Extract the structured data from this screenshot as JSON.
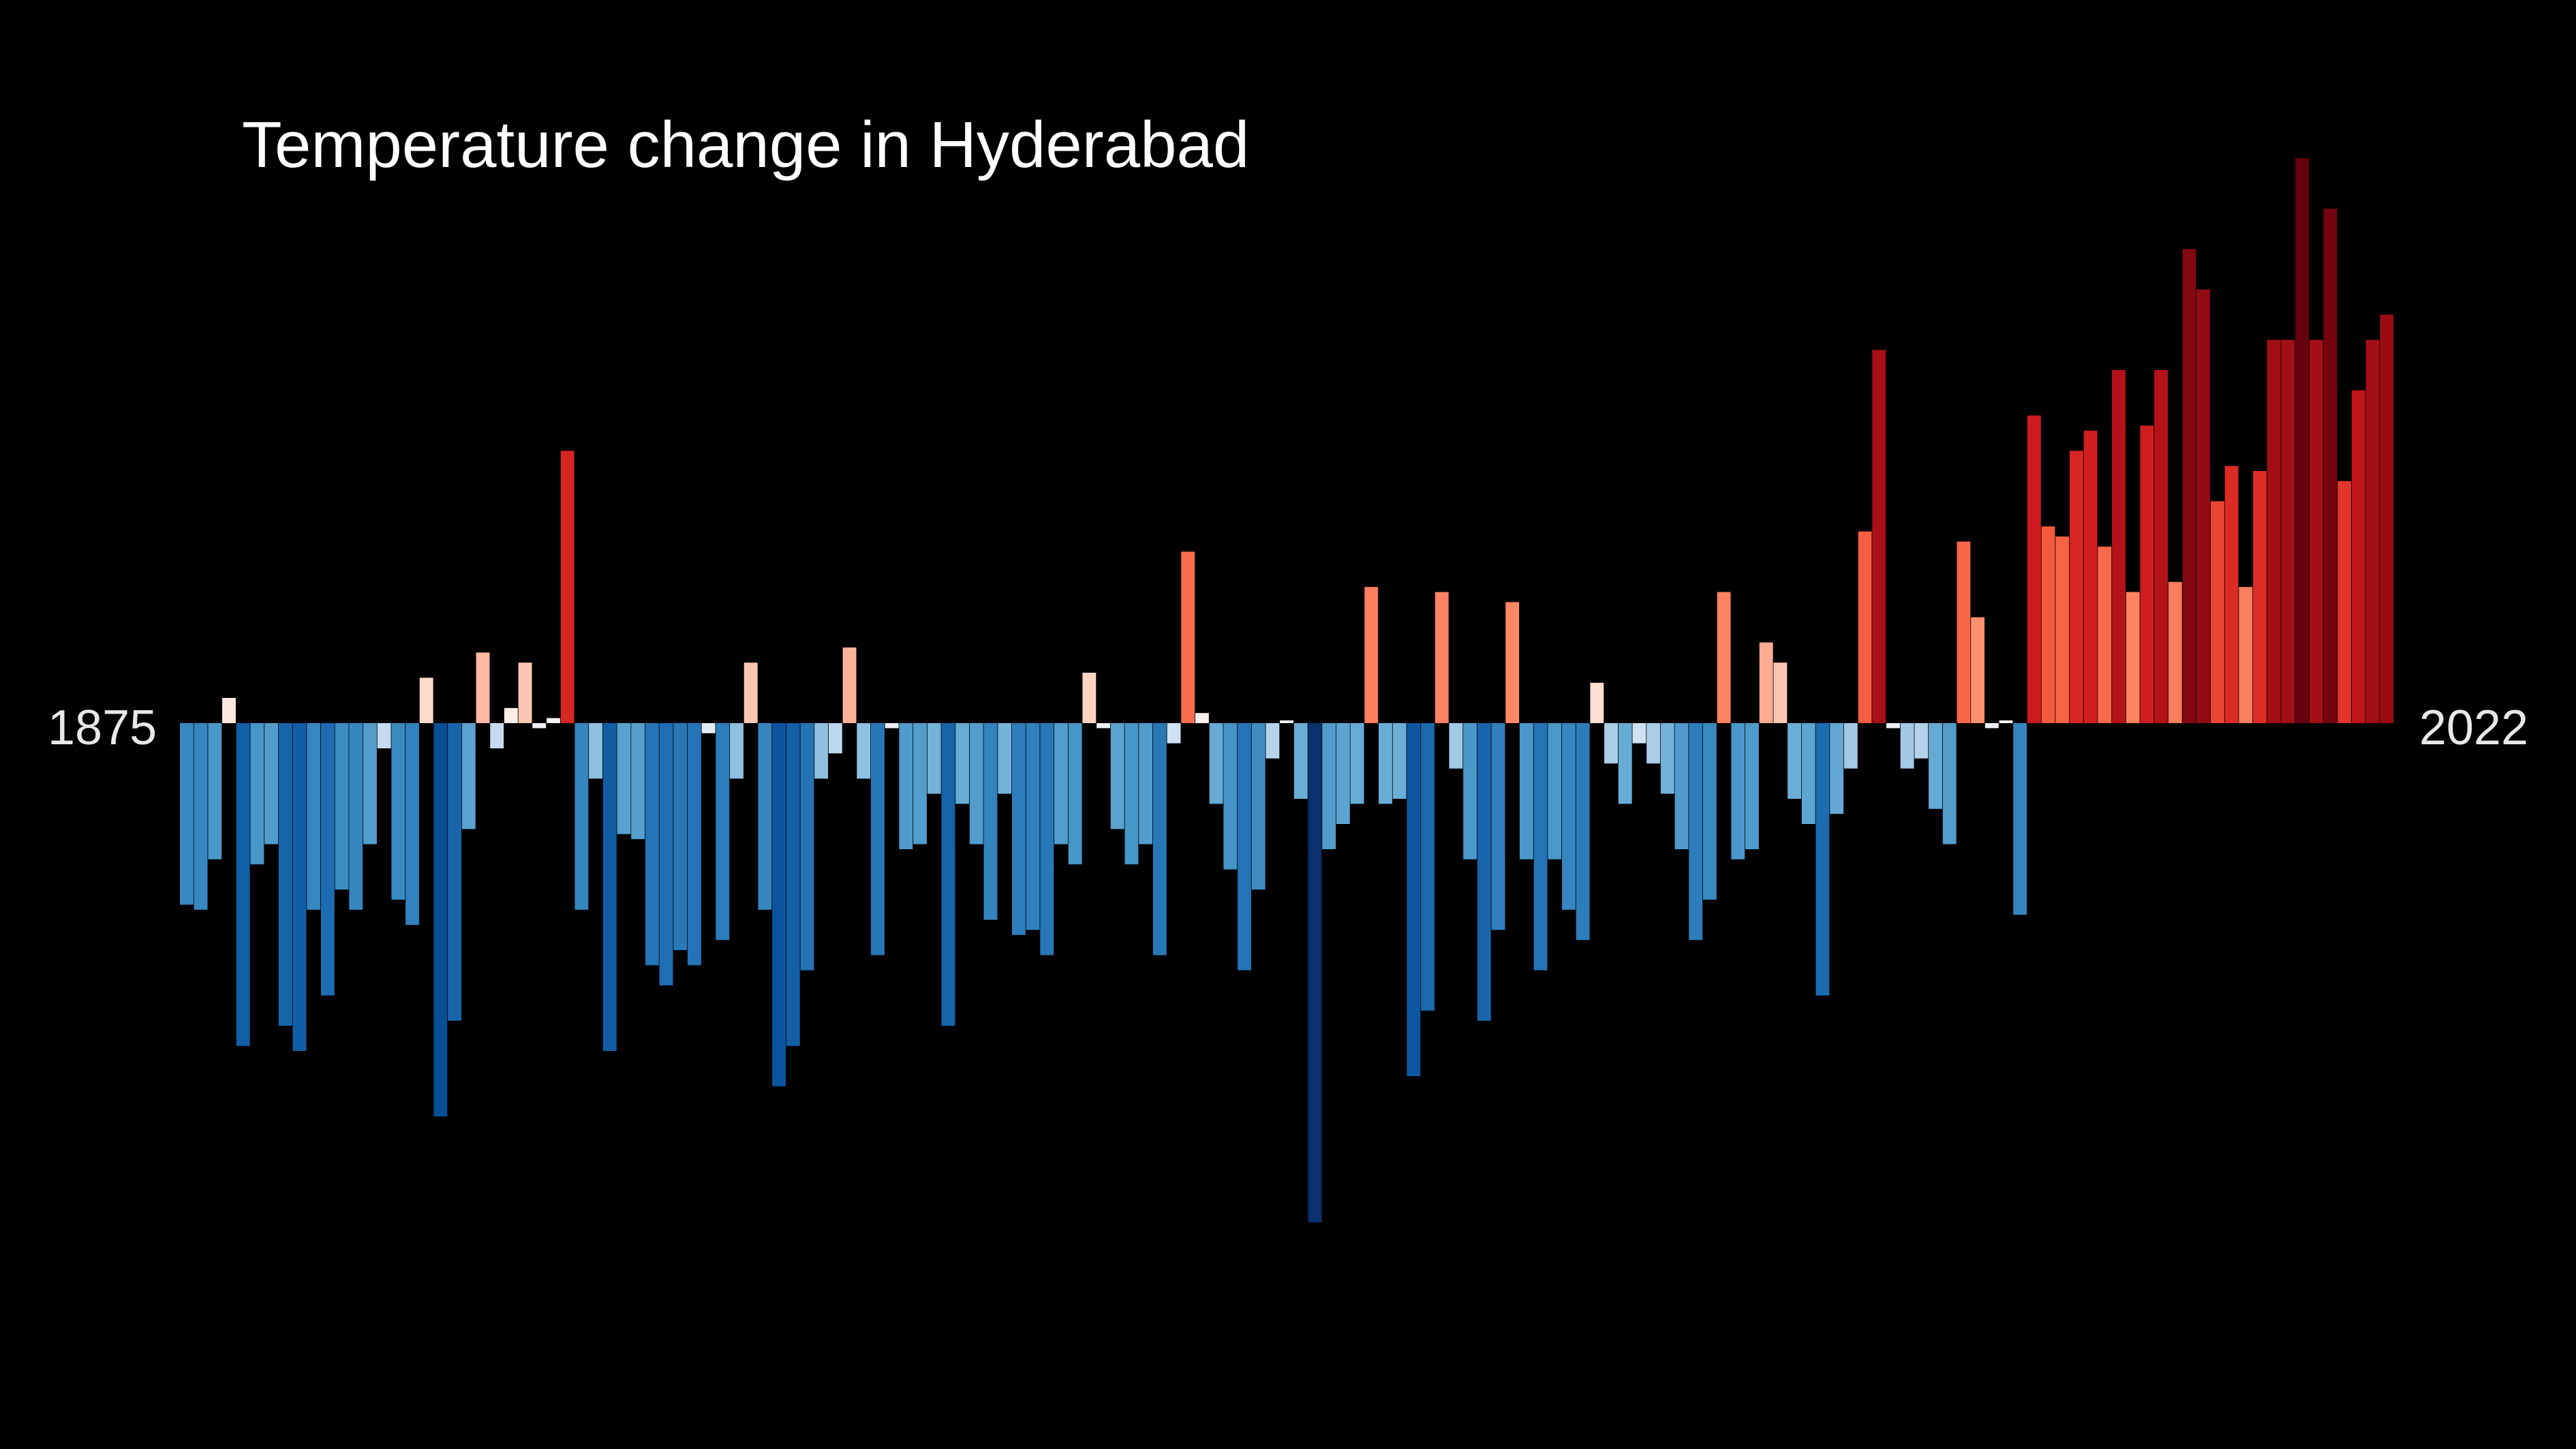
{
  "chart_data": {
    "type": "bar",
    "title": "Temperature change in Hyderabad",
    "start_year_label": "1875",
    "end_year_label": "2022",
    "years": [
      1875,
      2022
    ],
    "ylabel": "",
    "xlabel": "",
    "ylim": [
      -1.0,
      1.0
    ],
    "grid": false,
    "values": [
      -0.36,
      -0.37,
      -0.27,
      0.05,
      -0.64,
      -0.28,
      -0.24,
      -0.6,
      -0.65,
      -0.37,
      -0.54,
      -0.33,
      -0.37,
      -0.24,
      -0.05,
      -0.35,
      -0.4,
      0.09,
      -0.78,
      -0.59,
      -0.21,
      0.14,
      -0.05,
      0.03,
      0.12,
      -0.01,
      0.01,
      0.54,
      -0.37,
      -0.11,
      -0.65,
      -0.22,
      -0.23,
      -0.48,
      -0.52,
      -0.45,
      -0.48,
      -0.02,
      -0.43,
      -0.11,
      0.12,
      -0.37,
      -0.72,
      -0.64,
      -0.49,
      -0.11,
      -0.06,
      0.15,
      -0.11,
      -0.46,
      -0.01,
      -0.25,
      -0.24,
      -0.14,
      -0.6,
      -0.16,
      -0.24,
      -0.39,
      -0.14,
      -0.42,
      -0.41,
      -0.46,
      -0.24,
      -0.28,
      0.1,
      -0.01,
      -0.21,
      -0.28,
      -0.24,
      -0.46,
      -0.04,
      0.34,
      0.02,
      -0.16,
      -0.29,
      -0.49,
      -0.33,
      -0.07,
      0.0,
      -0.15,
      -0.99,
      -0.25,
      -0.2,
      -0.16,
      0.27,
      -0.16,
      -0.15,
      -0.7,
      -0.57,
      0.26,
      -0.09,
      -0.27,
      -0.59,
      -0.41,
      0.24,
      -0.27,
      -0.49,
      -0.27,
      -0.37,
      -0.43,
      0.08,
      -0.08,
      -0.16,
      -0.04,
      -0.08,
      -0.14,
      -0.25,
      -0.43,
      -0.35,
      0.26,
      -0.27,
      -0.25,
      0.16,
      0.12,
      -0.15,
      -0.2,
      -0.54,
      -0.18,
      -0.09,
      0.38,
      0.74,
      -0.01,
      -0.09,
      -0.07,
      -0.17,
      -0.24,
      0.36,
      0.21,
      -0.01,
      0.0,
      -0.38,
      0.61,
      0.39,
      0.37,
      0.54,
      0.58,
      0.35,
      0.7,
      0.26,
      0.59,
      0.7,
      0.28,
      0.94,
      0.86,
      0.44,
      0.51,
      0.27,
      0.5,
      0.76,
      0.76,
      1.12,
      0.76,
      1.02,
      0.48,
      0.66,
      0.76,
      0.81
    ]
  }
}
